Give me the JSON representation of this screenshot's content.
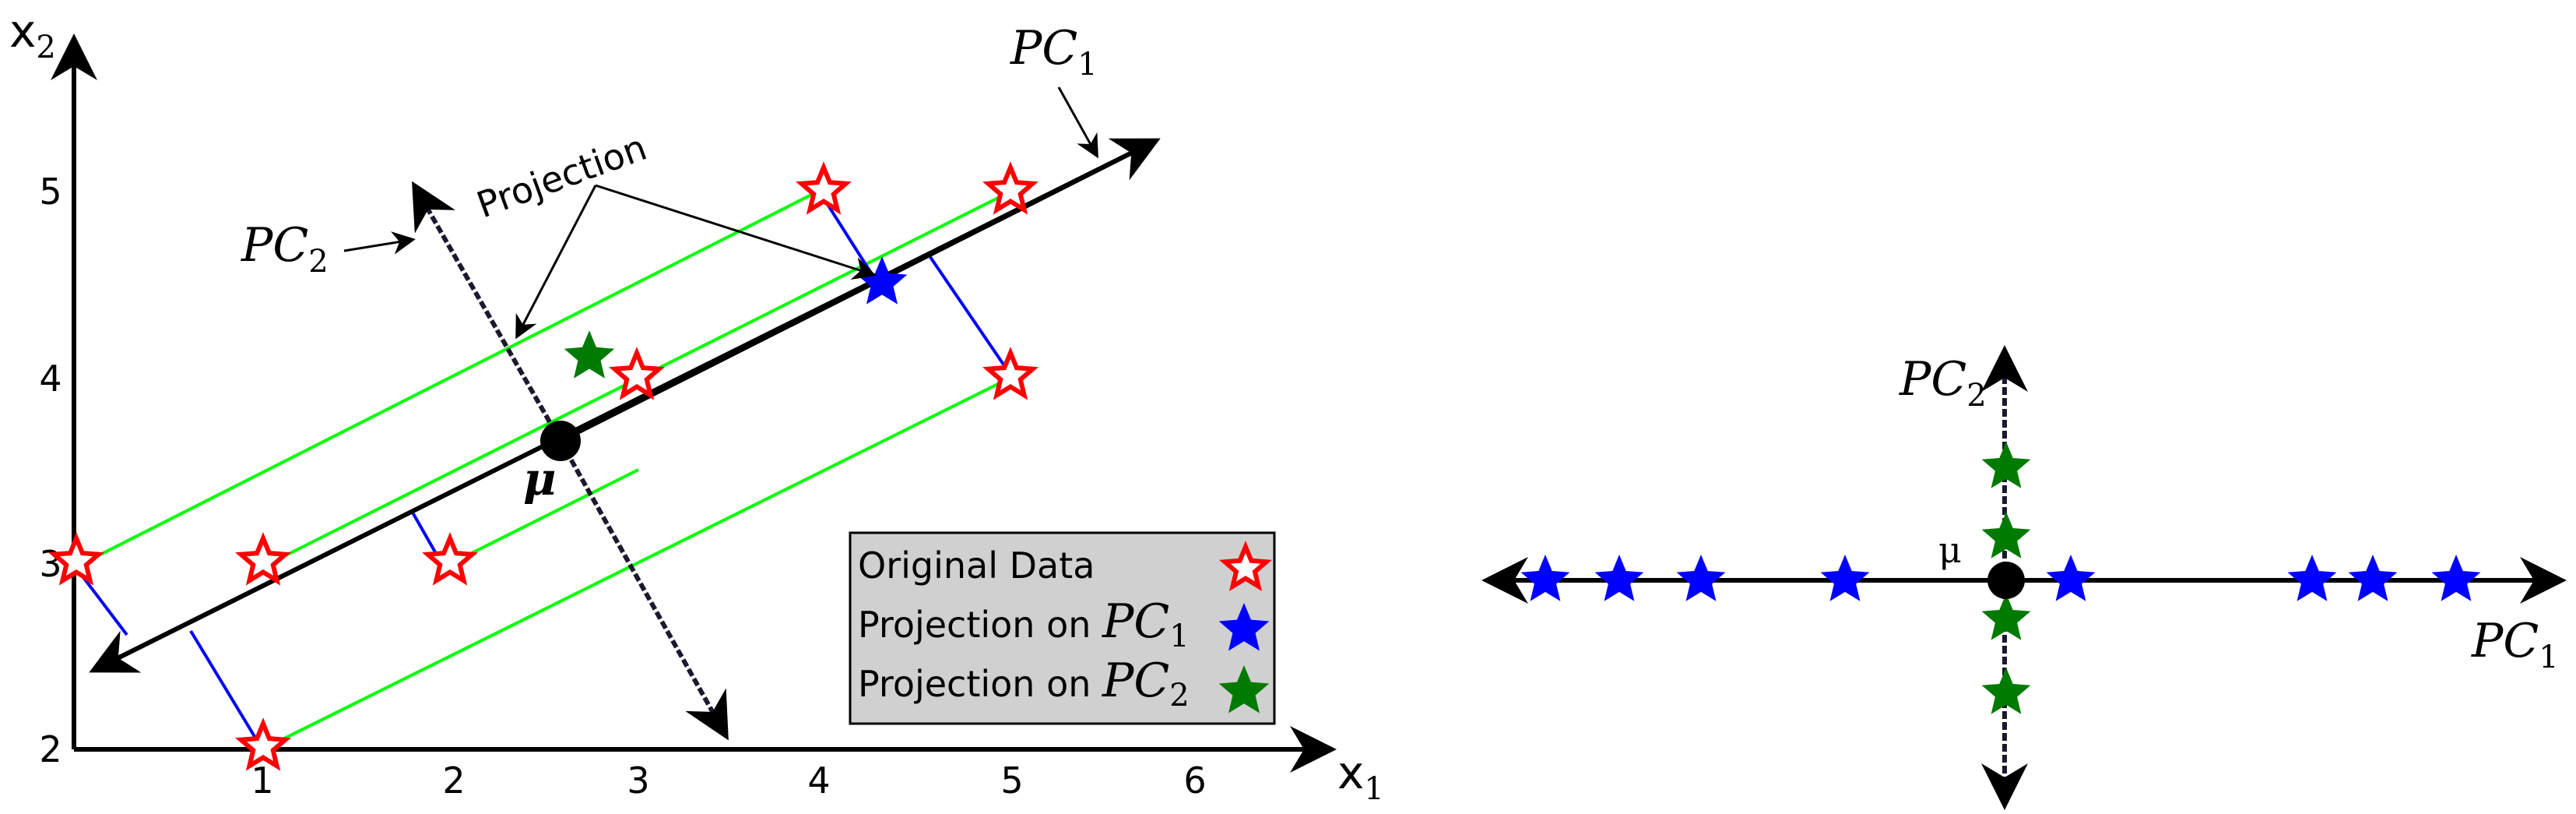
{
  "left_panel": {
    "x_axis": {
      "name": "x",
      "sub": "1",
      "ticks": [
        "1",
        "2",
        "3",
        "4",
        "5",
        "6"
      ]
    },
    "y_axis": {
      "name": "x",
      "sub": "2",
      "ticks": [
        "2",
        "3",
        "4",
        "5"
      ]
    },
    "pc1_label": {
      "main": "PC",
      "sub": "1"
    },
    "pc2_label": {
      "main": "PC",
      "sub": "2"
    },
    "projection_label": "Projection",
    "mean_label": "μ",
    "original_points": [
      [
        0,
        3
      ],
      [
        1,
        3
      ],
      [
        1,
        2
      ],
      [
        2,
        3
      ],
      [
        3,
        4
      ],
      [
        4,
        5
      ],
      [
        5,
        5
      ],
      [
        5,
        4
      ]
    ],
    "mean_point": [
      2.5,
      3.65
    ],
    "pc1_example_projection": [
      4.2,
      4.55
    ],
    "pc2_example_projection": [
      2.3,
      4.1
    ],
    "legend": {
      "items": [
        {
          "label": "Original Data"
        },
        {
          "label": "Projection on ",
          "pc_main": "PC",
          "pc_sub": "1"
        },
        {
          "label": "Projection on ",
          "pc_main": "PC",
          "pc_sub": "2"
        }
      ]
    }
  },
  "right_panel": {
    "pc1_label": {
      "main": "PC",
      "sub": "1"
    },
    "pc2_label": {
      "main": "PC",
      "sub": "2"
    },
    "mean_label": "μ"
  },
  "colors": {
    "original_star": "#ff0000",
    "pc1_star": "#0000ff",
    "pc2_star": "#007a00",
    "projection_line_green": "#00ff00",
    "projection_line_blue": "#0000ff",
    "legend_bg": "#d0d0d0"
  }
}
